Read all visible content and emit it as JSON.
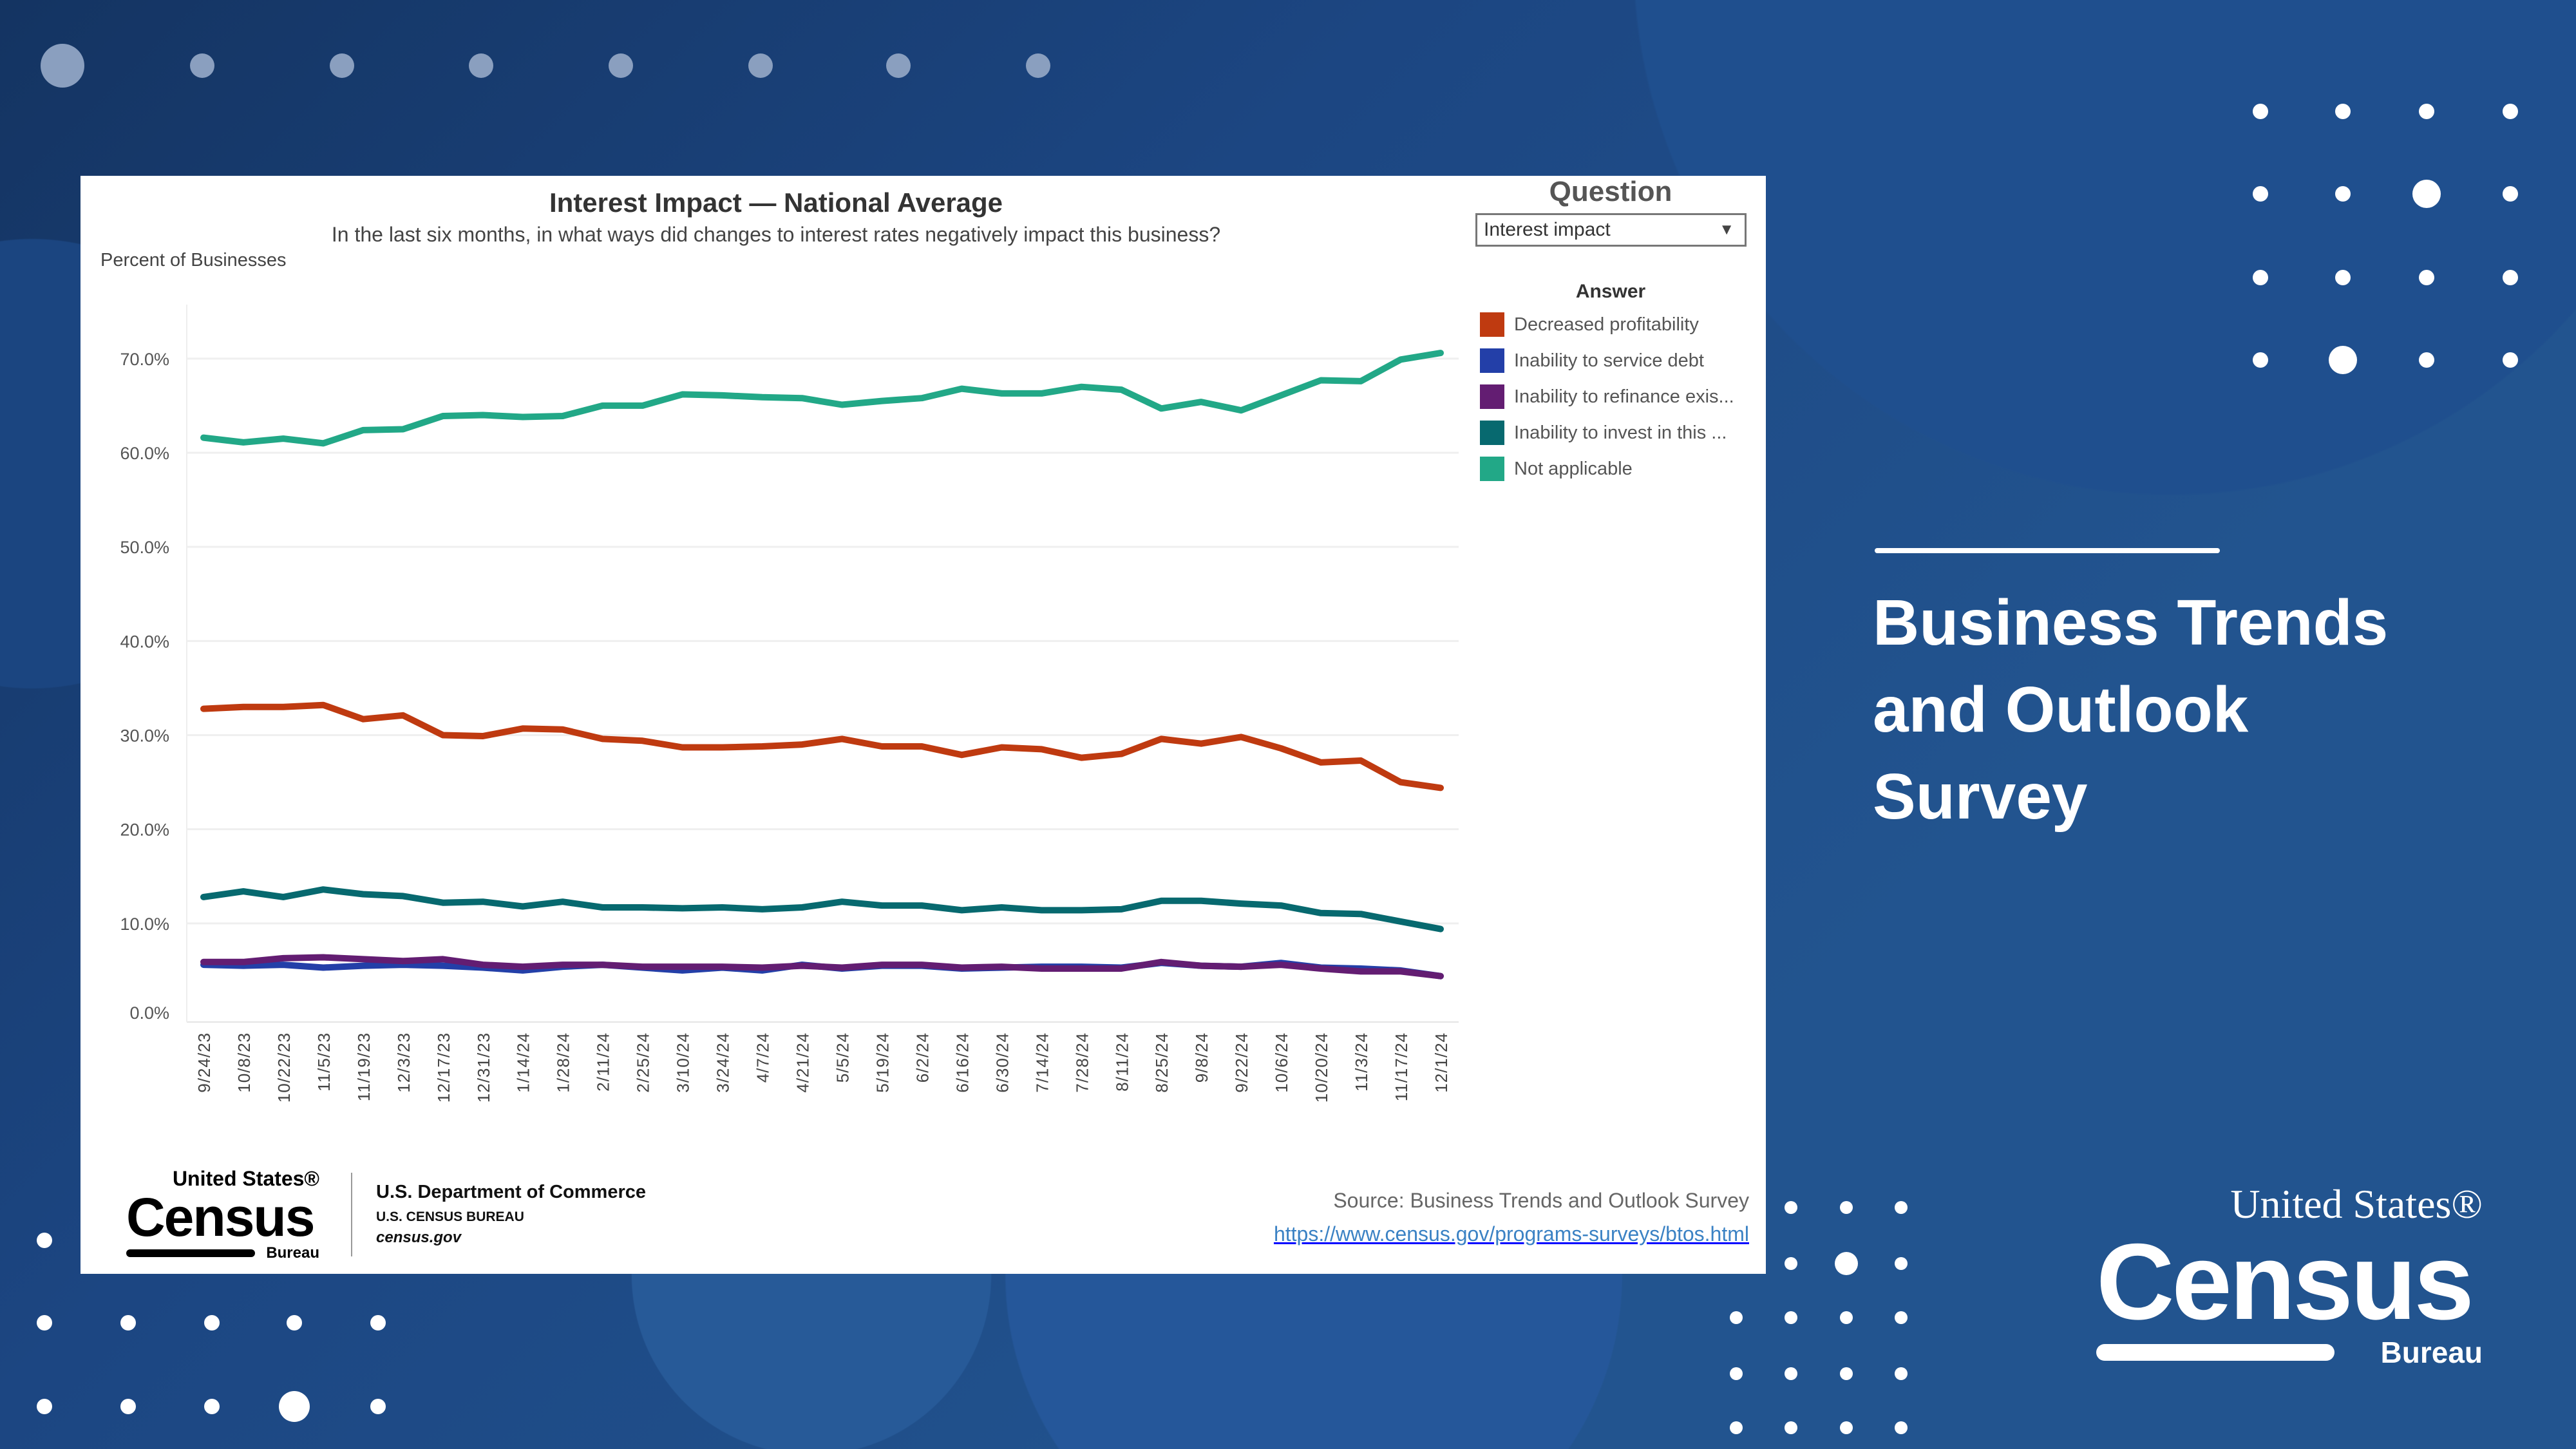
{
  "panel": {
    "title": "Interest Impact — National Average",
    "subtitle": "In the last six months, in what ways did changes to interest rates negatively impact this business?",
    "ylabel": "Percent of Businesses"
  },
  "filter": {
    "title": "Question",
    "selected": "Interest impact",
    "legend_title": "Answer"
  },
  "footer": {
    "logo_text": "United States® Census Bureau",
    "dept": "U.S. Department of Commerce",
    "bureau": "U.S. CENSUS BUREAU",
    "site": "census.gov",
    "source": "Source: Business Trends and Outlook Survey",
    "url": "https://www.census.gov/programs-surveys/btos.html"
  },
  "side": {
    "title_lines": [
      "Business Trends",
      "and Outlook",
      "Survey"
    ],
    "logo_text": "United States® Census Bureau"
  },
  "chart_data": {
    "type": "line",
    "title": "Interest Impact — National Average",
    "subtitle": "In the last six months, in what ways did changes to interest rates negatively impact this business?",
    "ylabel": "Percent of Businesses",
    "ylim": [
      0,
      73
    ],
    "yticks": [
      0,
      10,
      20,
      30,
      40,
      50,
      60,
      70
    ],
    "ytick_labels": [
      "0.0%",
      "10.0%",
      "20.0%",
      "30.0%",
      "40.0%",
      "50.0%",
      "60.0%",
      "70.0%"
    ],
    "grid": true,
    "legend": "right",
    "x": [
      "9/24/23",
      "10/8/23",
      "10/22/23",
      "11/5/23",
      "11/19/23",
      "12/3/23",
      "12/17/23",
      "12/31/23",
      "1/14/24",
      "1/28/24",
      "2/11/24",
      "2/25/24",
      "3/10/24",
      "3/24/24",
      "4/7/24",
      "4/21/24",
      "5/5/24",
      "5/19/24",
      "6/2/24",
      "6/16/24",
      "6/30/24",
      "7/14/24",
      "7/28/24",
      "8/11/24",
      "8/25/24",
      "9/8/24",
      "9/22/24",
      "10/6/24",
      "10/20/24",
      "11/3/24",
      "11/17/24",
      "12/1/24"
    ],
    "series": [
      {
        "name": "Decreased profitability",
        "color": "#bf3a10",
        "values": [
          32.8,
          33.0,
          33.0,
          33.2,
          31.7,
          32.1,
          30.0,
          29.9,
          30.7,
          30.6,
          29.6,
          29.4,
          28.7,
          28.7,
          28.8,
          29.0,
          29.6,
          28.8,
          28.8,
          27.9,
          28.7,
          28.5,
          27.6,
          28.0,
          29.6,
          29.1,
          29.8,
          28.6,
          27.1,
          27.3,
          25.0,
          24.4
        ]
      },
      {
        "name": "Inability to service debt",
        "color": "#233fa8",
        "values": [
          5.6,
          5.5,
          5.6,
          5.3,
          5.5,
          5.6,
          5.5,
          5.3,
          5.0,
          5.4,
          5.6,
          5.3,
          5.0,
          5.3,
          5.0,
          5.6,
          5.2,
          5.5,
          5.5,
          5.2,
          5.3,
          5.4,
          5.4,
          5.3,
          5.8,
          5.5,
          5.4,
          5.8,
          5.3,
          5.2,
          5.0,
          4.4
        ]
      },
      {
        "name": "Inability to refinance exis...",
        "color": "#631d72",
        "values": [
          5.9,
          5.9,
          6.3,
          6.4,
          6.2,
          6.0,
          6.2,
          5.6,
          5.4,
          5.6,
          5.6,
          5.4,
          5.4,
          5.4,
          5.3,
          5.5,
          5.3,
          5.6,
          5.6,
          5.3,
          5.4,
          5.2,
          5.2,
          5.2,
          5.9,
          5.5,
          5.4,
          5.6,
          5.2,
          4.9,
          4.9,
          4.4
        ]
      },
      {
        "name": "Inability to invest in this ...",
        "color": "#07696f",
        "values": [
          12.8,
          13.4,
          12.8,
          13.6,
          13.1,
          12.9,
          12.2,
          12.3,
          11.8,
          12.3,
          11.7,
          11.7,
          11.6,
          11.7,
          11.5,
          11.7,
          12.3,
          11.9,
          11.9,
          11.4,
          11.7,
          11.4,
          11.4,
          11.5,
          12.4,
          12.4,
          12.1,
          11.9,
          11.1,
          11.0,
          10.2,
          9.4
        ]
      },
      {
        "name": "Not applicable",
        "color": "#22a887",
        "values": [
          61.6,
          61.1,
          61.5,
          61.0,
          62.4,
          62.5,
          63.9,
          64.0,
          63.8,
          63.9,
          65.0,
          65.0,
          66.2,
          66.1,
          65.9,
          65.8,
          65.1,
          65.5,
          65.8,
          66.8,
          66.3,
          66.3,
          67.0,
          66.7,
          64.7,
          65.4,
          64.5,
          66.1,
          67.7,
          67.6,
          69.9,
          70.6
        ]
      }
    ]
  }
}
